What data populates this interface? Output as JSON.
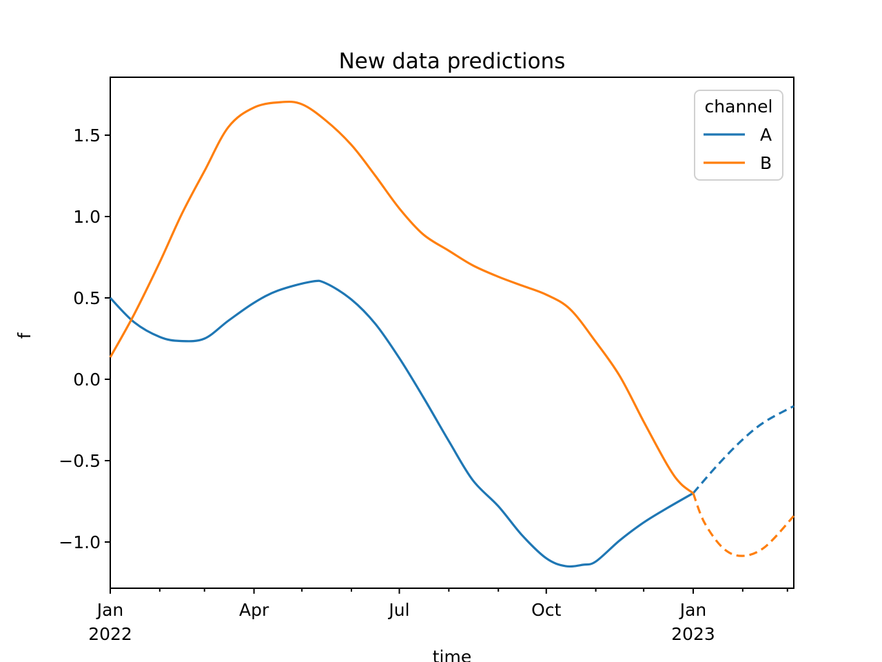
{
  "figure": {
    "title": "New data predictions"
  },
  "chart_data": {
    "type": "line",
    "title": "New data predictions",
    "xlabel": "time",
    "ylabel": "f",
    "grid": false,
    "legend": {
      "title": "channel",
      "position": "upper right",
      "entries": [
        "A",
        "B"
      ]
    },
    "x_axis": {
      "type": "time",
      "range": [
        "2022-01-01",
        "2023-03-05"
      ],
      "major_ticks": [
        {
          "date": "2022-01-01",
          "label": "Jan",
          "sublabel": "2022"
        },
        {
          "date": "2022-04-01",
          "label": "Apr",
          "sublabel": ""
        },
        {
          "date": "2022-07-01",
          "label": "Jul",
          "sublabel": ""
        },
        {
          "date": "2022-10-01",
          "label": "Oct",
          "sublabel": ""
        },
        {
          "date": "2023-01-01",
          "label": "Jan",
          "sublabel": "2023"
        }
      ],
      "minor_ticks": [
        "2022-02-01",
        "2022-03-01",
        "2022-05-01",
        "2022-06-01",
        "2022-08-01",
        "2022-09-01",
        "2022-11-01",
        "2022-12-01",
        "2023-02-01",
        "2023-03-01"
      ]
    },
    "y_axis": {
      "range": [
        -1.28,
        1.86
      ],
      "ticks": [
        {
          "value": -1.0,
          "label": "−1.0"
        },
        {
          "value": -0.5,
          "label": "−0.5"
        },
        {
          "value": 0.0,
          "label": "0.0"
        },
        {
          "value": 0.5,
          "label": "0.5"
        },
        {
          "value": 1.0,
          "label": "1.0"
        },
        {
          "value": 1.5,
          "label": "1.5"
        }
      ]
    },
    "series": [
      {
        "name": "A",
        "color": "#1f77b4",
        "observed_style": "solid",
        "predicted_style": "dashed",
        "observed": [
          [
            "2022-01-01",
            0.5
          ],
          [
            "2022-01-16",
            0.35
          ],
          [
            "2022-02-01",
            0.26
          ],
          [
            "2022-02-14",
            0.235
          ],
          [
            "2022-03-01",
            0.25
          ],
          [
            "2022-03-16",
            0.36
          ],
          [
            "2022-04-01",
            0.47
          ],
          [
            "2022-04-16",
            0.545
          ],
          [
            "2022-05-07",
            0.6
          ],
          [
            "2022-05-16",
            0.59
          ],
          [
            "2022-06-01",
            0.49
          ],
          [
            "2022-06-16",
            0.34
          ],
          [
            "2022-07-01",
            0.13
          ],
          [
            "2022-07-16",
            -0.11
          ],
          [
            "2022-08-01",
            -0.38
          ],
          [
            "2022-08-16",
            -0.62
          ],
          [
            "2022-09-01",
            -0.78
          ],
          [
            "2022-09-16",
            -0.96
          ],
          [
            "2022-10-01",
            -1.1
          ],
          [
            "2022-10-13",
            -1.148
          ],
          [
            "2022-10-24",
            -1.14
          ],
          [
            "2022-11-01",
            -1.12
          ],
          [
            "2022-11-16",
            -0.99
          ],
          [
            "2022-12-01",
            -0.88
          ],
          [
            "2022-12-16",
            -0.79
          ],
          [
            "2023-01-01",
            -0.7
          ]
        ],
        "predicted": [
          [
            "2023-01-01",
            -0.7
          ],
          [
            "2023-01-16",
            -0.53
          ],
          [
            "2023-02-01",
            -0.37
          ],
          [
            "2023-02-15",
            -0.26
          ],
          [
            "2023-03-05",
            -0.165
          ]
        ]
      },
      {
        "name": "B",
        "color": "#ff7f0e",
        "observed_style": "solid",
        "predicted_style": "dashed",
        "observed": [
          [
            "2022-01-01",
            0.135
          ],
          [
            "2022-01-16",
            0.4
          ],
          [
            "2022-02-01",
            0.72
          ],
          [
            "2022-02-15",
            1.02
          ],
          [
            "2022-03-01",
            1.28
          ],
          [
            "2022-03-16",
            1.55
          ],
          [
            "2022-04-01",
            1.67
          ],
          [
            "2022-04-18",
            1.703
          ],
          [
            "2022-05-01",
            1.69
          ],
          [
            "2022-05-16",
            1.59
          ],
          [
            "2022-06-01",
            1.44
          ],
          [
            "2022-06-16",
            1.25
          ],
          [
            "2022-07-01",
            1.05
          ],
          [
            "2022-07-16",
            0.89
          ],
          [
            "2022-08-01",
            0.79
          ],
          [
            "2022-08-16",
            0.7
          ],
          [
            "2022-09-01",
            0.63
          ],
          [
            "2022-09-16",
            0.575
          ],
          [
            "2022-10-01",
            0.52
          ],
          [
            "2022-10-16",
            0.43
          ],
          [
            "2022-11-01",
            0.23
          ],
          [
            "2022-11-16",
            0.02
          ],
          [
            "2022-12-01",
            -0.26
          ],
          [
            "2022-12-16",
            -0.53
          ],
          [
            "2022-12-24",
            -0.64
          ],
          [
            "2023-01-01",
            -0.7
          ]
        ],
        "predicted": [
          [
            "2023-01-01",
            -0.7
          ],
          [
            "2023-01-08",
            -0.88
          ],
          [
            "2023-01-20",
            -1.04
          ],
          [
            "2023-02-01",
            -1.085
          ],
          [
            "2023-02-15",
            -1.03
          ],
          [
            "2023-03-05",
            -0.84
          ]
        ]
      }
    ]
  }
}
